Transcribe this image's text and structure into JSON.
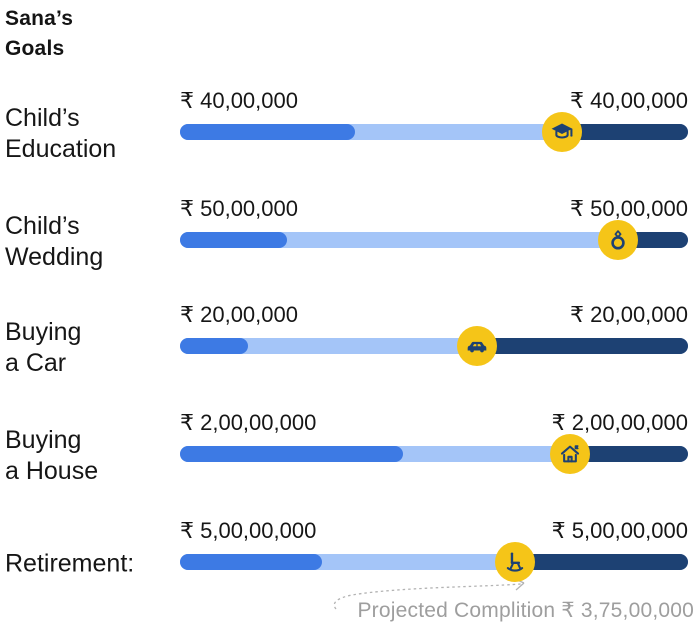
{
  "title": "Sana’s\nGoals",
  "colors": {
    "fill_blue": "#3D7AE4",
    "track_blue": "#A4C5F8",
    "navy": "#1D4173",
    "marker_yellow": "#F5C518",
    "annotation_gray": "#9E9E9E",
    "text": "#141414"
  },
  "goals": [
    {
      "name": "Child's Education",
      "label": "Child’s\nEducation",
      "left_amount": "₹ 40,00,000",
      "right_amount": "₹ 40,00,000",
      "icon": "graduation-cap",
      "progress_pct": 34.4,
      "marker_pct": 75.2
    },
    {
      "name": "Child's Wedding",
      "label": "Child’s\nWedding",
      "left_amount": "₹ 50,00,000",
      "right_amount": "₹ 50,00,000",
      "icon": "ring",
      "progress_pct": 21.1,
      "marker_pct": 86.2
    },
    {
      "name": "Buying a Car",
      "label": "Buying\na Car",
      "left_amount": "₹ 20,00,000",
      "right_amount": "₹ 20,00,000",
      "icon": "car",
      "progress_pct": 13.4,
      "marker_pct": 58.5
    },
    {
      "name": "Buying a House",
      "label": "Buying\na House",
      "left_amount": "₹ 2,00,00,000",
      "right_amount": "₹ 2,00,00,000",
      "icon": "house",
      "progress_pct": 43.9,
      "marker_pct": 76.8
    },
    {
      "name": "Retirement",
      "label": "Retirement:",
      "left_amount": "₹ 5,00,00,000",
      "right_amount": "₹ 5,00,00,000",
      "icon": "rocking-chair",
      "progress_pct": 28.0,
      "marker_pct": 65.9
    }
  ],
  "annotation": {
    "text": "Projected Complition ₹ 3,75,00,000"
  },
  "chart_data": {
    "type": "bar",
    "orientation": "horizontal",
    "title": "Sana's Goals",
    "categories": [
      "Child's Education",
      "Child's Wedding",
      "Buying a Car",
      "Buying a House",
      "Retirement"
    ],
    "target_amount_labels": [
      "₹ 40,00,000",
      "₹ 50,00,000",
      "₹ 20,00,000",
      "₹ 2,00,00,000",
      "₹ 5,00,00,000"
    ],
    "target_amounts_inr": [
      4000000,
      5000000,
      2000000,
      20000000,
      50000000
    ],
    "series": [
      {
        "name": "progress_pct_of_bar",
        "values": [
          34.4,
          21.1,
          13.4,
          43.9,
          28.0
        ]
      },
      {
        "name": "marker_position_pct_of_bar",
        "values": [
          75.2,
          86.2,
          58.5,
          76.8,
          65.9
        ]
      }
    ],
    "marker_icons": [
      "graduation-cap",
      "ring",
      "car",
      "house",
      "rocking-chair"
    ],
    "annotations": [
      {
        "target_category": "Retirement",
        "text": "Projected Complition ₹ 3,75,00,000",
        "value_inr": 37500000
      }
    ],
    "legend": false,
    "grid": false
  }
}
